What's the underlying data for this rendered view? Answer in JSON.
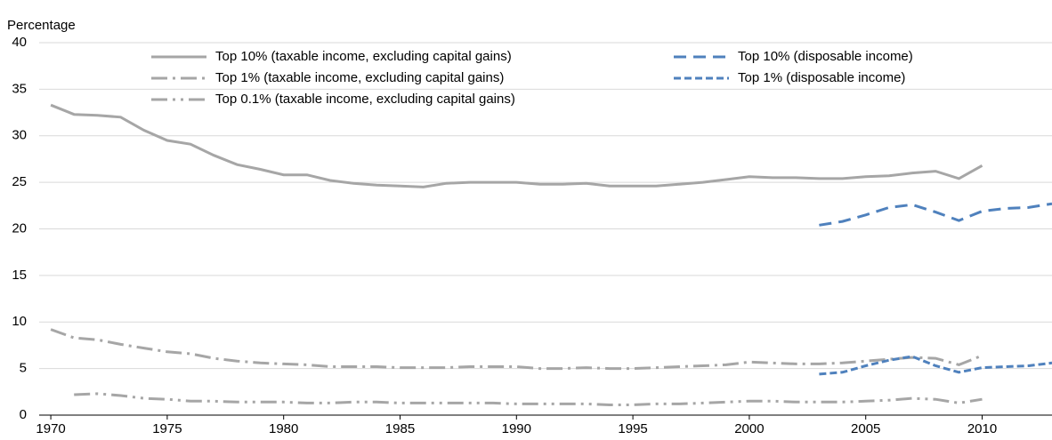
{
  "chart_data": {
    "type": "line",
    "y_label": "Percentage",
    "x": [
      1970,
      1971,
      1972,
      1973,
      1974,
      1975,
      1976,
      1977,
      1978,
      1979,
      1980,
      1981,
      1982,
      1983,
      1984,
      1985,
      1986,
      1987,
      1988,
      1989,
      1990,
      1991,
      1992,
      1993,
      1994,
      1995,
      1996,
      1997,
      1998,
      1999,
      2000,
      2001,
      2002,
      2003,
      2004,
      2005,
      2006,
      2007,
      2008,
      2009,
      2010,
      2011,
      2012,
      2013
    ],
    "xlim": [
      1969.5,
      2013
    ],
    "xticks": [
      1970,
      1975,
      1980,
      1985,
      1990,
      1995,
      2000,
      2005,
      2010
    ],
    "ylim": [
      0,
      40
    ],
    "yticks": [
      0,
      5,
      10,
      15,
      20,
      25,
      30,
      35,
      40
    ],
    "grid": true,
    "series": [
      {
        "name": "Top 10% (taxable income, excluding capital gains)",
        "color": "#a6a6a6",
        "dash": "solid",
        "values": [
          33.3,
          32.3,
          32.2,
          32.0,
          30.6,
          29.5,
          29.1,
          27.9,
          26.9,
          26.4,
          25.8,
          25.8,
          25.2,
          24.9,
          24.7,
          24.6,
          24.5,
          24.9,
          25.0,
          25.0,
          25.0,
          24.8,
          24.8,
          24.9,
          24.6,
          24.6,
          24.6,
          24.8,
          25.0,
          25.3,
          25.6,
          25.5,
          25.5,
          25.4,
          25.4,
          25.6,
          25.7,
          26.0,
          26.2,
          25.4,
          26.8,
          null,
          null,
          null
        ]
      },
      {
        "name": "Top 1% (taxable income, excluding capital gains)",
        "color": "#a6a6a6",
        "dash": "dash-dot",
        "values": [
          9.2,
          8.3,
          8.1,
          7.6,
          7.2,
          6.8,
          6.6,
          6.1,
          5.8,
          5.6,
          5.5,
          5.4,
          5.2,
          5.2,
          5.2,
          5.1,
          5.1,
          5.1,
          5.2,
          5.2,
          5.2,
          5.0,
          5.0,
          5.1,
          5.0,
          5.0,
          5.1,
          5.2,
          5.3,
          5.4,
          5.7,
          5.6,
          5.5,
          5.5,
          5.6,
          5.8,
          6.0,
          6.2,
          6.1,
          5.4,
          6.4,
          null,
          null,
          null
        ]
      },
      {
        "name": "Top 0.1% (taxable income, excluding capital gains)",
        "color": "#a6a6a6",
        "dash": "dash-dot-dot",
        "values": [
          null,
          2.2,
          2.3,
          2.1,
          1.8,
          1.7,
          1.5,
          1.5,
          1.4,
          1.4,
          1.4,
          1.3,
          1.3,
          1.4,
          1.4,
          1.3,
          1.3,
          1.3,
          1.3,
          1.3,
          1.2,
          1.2,
          1.2,
          1.2,
          1.1,
          1.1,
          1.2,
          1.2,
          1.3,
          1.4,
          1.5,
          1.5,
          1.4,
          1.4,
          1.4,
          1.5,
          1.6,
          1.8,
          1.7,
          1.3,
          1.7,
          null,
          null,
          null
        ]
      },
      {
        "name": "Top 10% (disposable income)",
        "color": "#4f81bd",
        "dash": "dash",
        "values": [
          null,
          null,
          null,
          null,
          null,
          null,
          null,
          null,
          null,
          null,
          null,
          null,
          null,
          null,
          null,
          null,
          null,
          null,
          null,
          null,
          null,
          null,
          null,
          null,
          null,
          null,
          null,
          null,
          null,
          null,
          null,
          null,
          null,
          20.4,
          20.8,
          21.5,
          22.3,
          22.6,
          21.8,
          20.9,
          21.9,
          22.2,
          22.3,
          22.7
        ]
      },
      {
        "name": "Top 1% (disposable income)",
        "color": "#4f81bd",
        "dash": "short-dash",
        "values": [
          null,
          null,
          null,
          null,
          null,
          null,
          null,
          null,
          null,
          null,
          null,
          null,
          null,
          null,
          null,
          null,
          null,
          null,
          null,
          null,
          null,
          null,
          null,
          null,
          null,
          null,
          null,
          null,
          null,
          null,
          null,
          null,
          null,
          4.4,
          4.6,
          5.3,
          5.9,
          6.3,
          5.3,
          4.6,
          5.1,
          5.2,
          5.3,
          5.6
        ]
      }
    ]
  }
}
